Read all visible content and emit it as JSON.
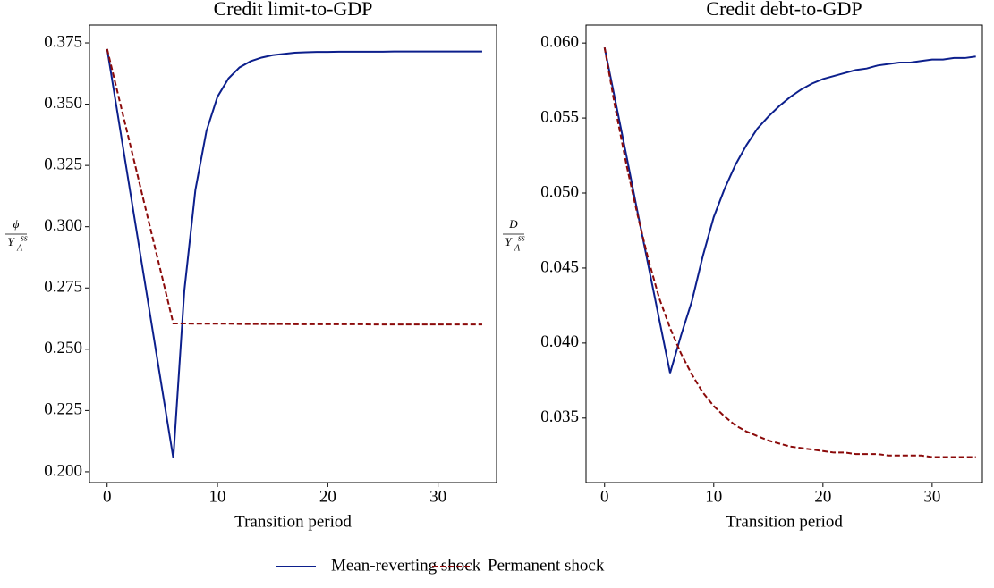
{
  "chart_data": [
    {
      "type": "line",
      "title": "Credit limit-to-GDP",
      "xlabel": "Transition period",
      "ylabel": {
        "numerator": "ϕ",
        "denominator": "Y",
        "sub": "A",
        "sup": "ss"
      },
      "x": [
        0,
        1,
        2,
        3,
        4,
        5,
        6,
        7,
        8,
        9,
        10,
        11,
        12,
        13,
        14,
        15,
        16,
        17,
        18,
        19,
        20,
        21,
        22,
        23,
        24,
        25,
        26,
        27,
        28,
        29,
        30,
        31,
        32,
        33,
        34
      ],
      "xlim": [
        -1.6,
        35.3
      ],
      "xticks": [
        0,
        10,
        20,
        30
      ],
      "ylim": [
        0.1956,
        0.3823
      ],
      "yticks": [
        {
          "value": 0.2,
          "label": "0.200"
        },
        {
          "value": 0.225,
          "label": "0.225"
        },
        {
          "value": 0.25,
          "label": "0.250"
        },
        {
          "value": 0.275,
          "label": "0.275"
        },
        {
          "value": 0.3,
          "label": "0.300"
        },
        {
          "value": 0.325,
          "label": "0.325"
        },
        {
          "value": 0.35,
          "label": "0.350"
        },
        {
          "value": 0.375,
          "label": "0.375"
        }
      ],
      "series": [
        {
          "name": "Mean-reverting shock",
          "color": "#0c1f8c",
          "dashed": false,
          "values": [
            0.3725,
            0.3447,
            0.3168,
            0.289,
            0.2612,
            0.2333,
            0.2055,
            0.274,
            0.315,
            0.339,
            0.353,
            0.3605,
            0.365,
            0.3675,
            0.369,
            0.37,
            0.3705,
            0.371,
            0.3712,
            0.3713,
            0.3713,
            0.3714,
            0.3714,
            0.3714,
            0.3714,
            0.3714,
            0.3715,
            0.3715,
            0.3715,
            0.3715,
            0.3715,
            0.3715,
            0.3715,
            0.3715,
            0.3715
          ]
        },
        {
          "name": "Permanent shock",
          "color": "#8b0a0a",
          "dashed": true,
          "values": [
            0.3725,
            0.3538,
            0.3352,
            0.3165,
            0.2978,
            0.2792,
            0.2605,
            0.2605,
            0.2604,
            0.2604,
            0.2604,
            0.2604,
            0.2603,
            0.2603,
            0.2603,
            0.2603,
            0.2603,
            0.2602,
            0.2602,
            0.2602,
            0.2602,
            0.2602,
            0.2602,
            0.2602,
            0.2601,
            0.2601,
            0.2601,
            0.2601,
            0.2601,
            0.2601,
            0.2601,
            0.2601,
            0.2601,
            0.2601,
            0.2601
          ]
        }
      ]
    },
    {
      "type": "line",
      "title": "Credit debt-to-GDP",
      "xlabel": "Transition period",
      "ylabel": {
        "numerator": "D",
        "denominator": "Y",
        "sub": "A",
        "sup": "ss"
      },
      "x": [
        0,
        1,
        2,
        3,
        4,
        5,
        6,
        7,
        8,
        9,
        10,
        11,
        12,
        13,
        14,
        15,
        16,
        17,
        18,
        19,
        20,
        21,
        22,
        23,
        24,
        25,
        26,
        27,
        28,
        29,
        30,
        31,
        32,
        33,
        34
      ],
      "xlim": [
        -1.7,
        34.6
      ],
      "xticks": [
        0,
        10,
        20,
        30
      ],
      "ylim": [
        0.0307,
        0.0612
      ],
      "yticks": [
        {
          "value": 0.035,
          "label": "0.035"
        },
        {
          "value": 0.04,
          "label": "0.040"
        },
        {
          "value": 0.045,
          "label": "0.045"
        },
        {
          "value": 0.05,
          "label": "0.050"
        },
        {
          "value": 0.055,
          "label": "0.055"
        },
        {
          "value": 0.06,
          "label": "0.060"
        }
      ],
      "series": [
        {
          "color": "#0c1f8c",
          "dashed": false,
          "values": [
            0.0597,
            0.0561,
            0.0525,
            0.0488,
            0.0452,
            0.0416,
            0.038,
            0.0405,
            0.0428,
            0.0458,
            0.0484,
            0.0503,
            0.0519,
            0.0532,
            0.0543,
            0.0551,
            0.0558,
            0.0564,
            0.0569,
            0.0573,
            0.0576,
            0.0578,
            0.058,
            0.0582,
            0.0583,
            0.0585,
            0.0586,
            0.0587,
            0.0587,
            0.0588,
            0.0589,
            0.0589,
            0.059,
            0.059,
            0.0591
          ]
        },
        {
          "color": "#8b0a0a",
          "dashed": true,
          "values": [
            0.0597,
            0.0556,
            0.0519,
            0.0486,
            0.0456,
            0.043,
            0.041,
            0.0393,
            0.0379,
            0.0367,
            0.0358,
            0.0351,
            0.0345,
            0.0341,
            0.0338,
            0.0335,
            0.0333,
            0.0331,
            0.033,
            0.0329,
            0.0328,
            0.0327,
            0.0327,
            0.0326,
            0.0326,
            0.0326,
            0.0325,
            0.0325,
            0.0325,
            0.0325,
            0.0324,
            0.0324,
            0.0324,
            0.0324,
            0.0324
          ]
        }
      ]
    }
  ]
}
